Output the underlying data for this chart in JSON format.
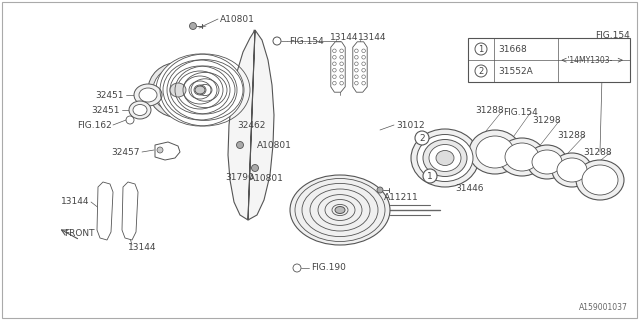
{
  "bg_color": "#ffffff",
  "diagram_id": "A159001037",
  "lc": "#555555",
  "tc": "#444444",
  "fs": 6.5,
  "sfs": 5.5,
  "labels": {
    "A10801_top": "A10801",
    "FIG154_top": "FIG.154",
    "13144_top": "13144",
    "13144_top2": "13144",
    "32451_upper": "32451",
    "32451_lower": "32451",
    "FIG162": "FIG.162",
    "32462": "32462",
    "A10801_mid": "A10801",
    "32457": "32457",
    "A10801_low": "A10801",
    "31790": "31790",
    "13144_bot_left": "13144",
    "13144_bot_mid": "13144",
    "FRONT": "FRONT",
    "FIG190": "FIG.190",
    "A11211": "A11211",
    "31012": "31012",
    "FIG154_right": "FIG.154",
    "31288_top": "31288",
    "31298": "31298",
    "FIG154_mid": "FIG.154",
    "31288_mid": "31288",
    "31288_bot": "31288",
    "31446": "31446",
    "circle1": "1",
    "circle2": "2",
    "legend_31668": "31668",
    "legend_31552A": "31552A",
    "legend_date": "<'14MY1303-  >"
  }
}
